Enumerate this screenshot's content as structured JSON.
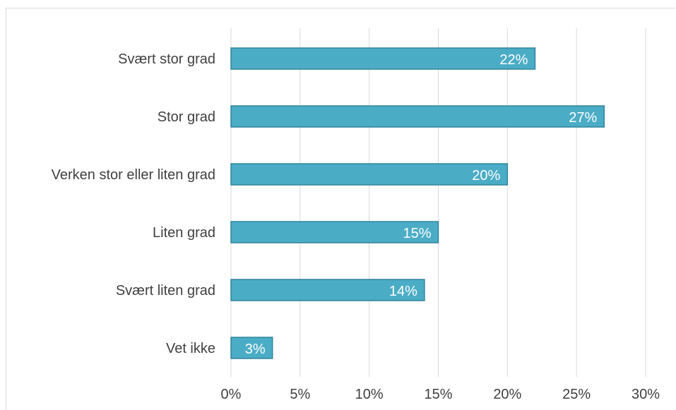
{
  "chart_data": {
    "type": "bar",
    "orientation": "horizontal",
    "categories": [
      "Svært stor grad",
      "Stor grad",
      "Verken stor eller liten grad",
      "Liten grad",
      "Svært liten grad",
      "Vet ikke"
    ],
    "values": [
      22,
      27,
      20,
      15,
      14,
      3
    ],
    "data_labels": [
      "22%",
      "27%",
      "20%",
      "15%",
      "14%",
      "3%"
    ],
    "xticks": [
      "0%",
      "5%",
      "10%",
      "15%",
      "20%",
      "25%",
      "30%"
    ],
    "xlim": [
      0,
      30
    ],
    "grid": true,
    "title": "",
    "xlabel": "",
    "ylabel": "",
    "colors": {
      "bar_fill": "#4bacc6",
      "bar_stroke": "#31859c",
      "grid": "#d9d9d9",
      "text": "#404040",
      "data_label": "#ffffff"
    }
  }
}
